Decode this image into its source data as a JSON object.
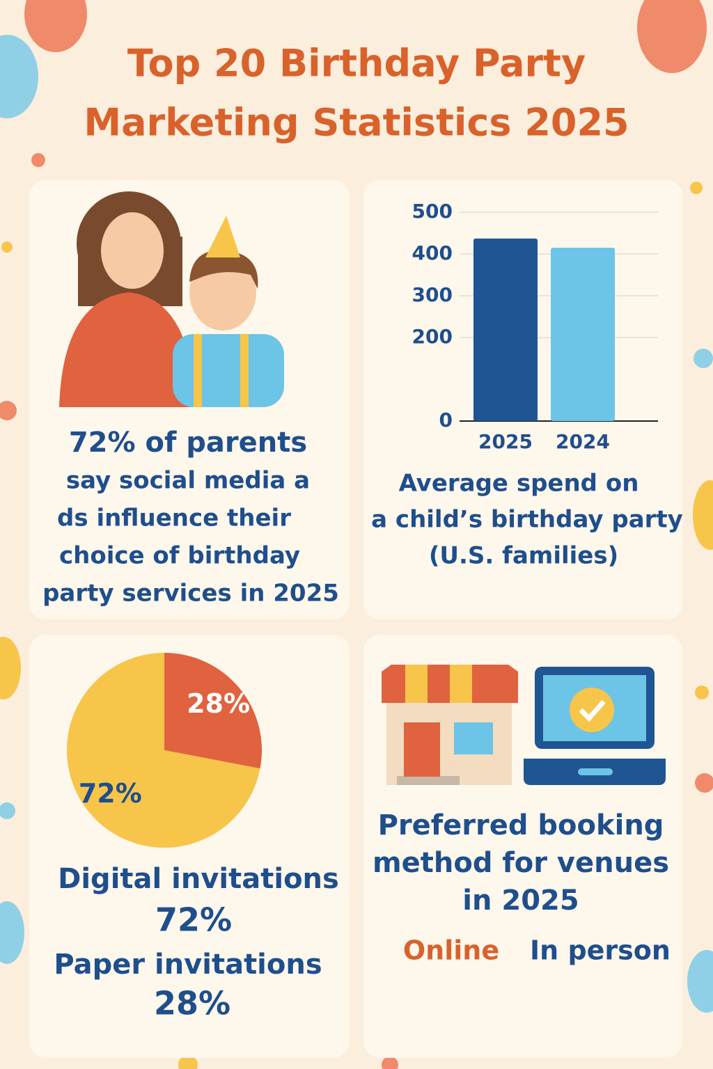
{
  "title_lines": [
    "Top 20 Birthday Party",
    "Marketing Statistics 2025"
  ],
  "parents_stat": {
    "lines": [
      "72% of parents",
      "say social media a",
      "ds influence their",
      "choice of birthday",
      "party services in 2025"
    ]
  },
  "spend_caption": {
    "lines": [
      "Average spend on",
      "a child’s birthday party",
      "(U.S. families)"
    ]
  },
  "invitations": {
    "lines": [
      "Digital invitations",
      "72%",
      "Paper invitations",
      "28%"
    ]
  },
  "booking": {
    "lines": [
      "Preferred booking",
      "method for venues",
      "in 2025"
    ],
    "options": [
      "Online",
      "In person"
    ]
  },
  "chart_data": [
    {
      "type": "bar",
      "categories": [
        "2025",
        "2024"
      ],
      "values": [
        437,
        415
      ],
      "colors": [
        "#1f5592",
        "#6cc4e6"
      ],
      "ylim": [
        0,
        500
      ],
      "yticks": [
        0,
        200,
        300,
        400,
        500
      ],
      "grid": true
    },
    {
      "type": "pie",
      "values": [
        28,
        72
      ],
      "value_labels": [
        "28%",
        "72%"
      ],
      "colors": [
        "#e0623f",
        "#f7c54a"
      ]
    }
  ]
}
